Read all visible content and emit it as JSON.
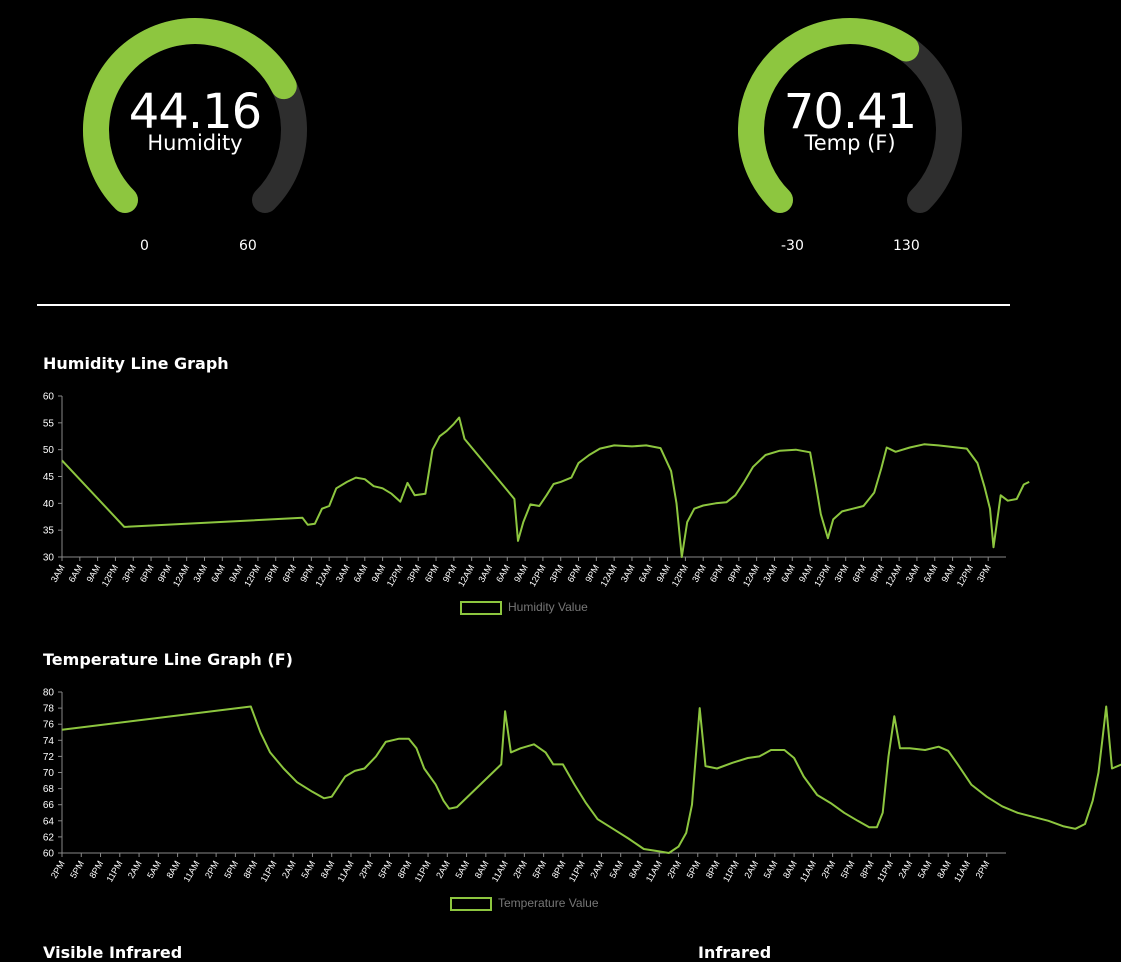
{
  "colors": {
    "accent": "#8dc63f",
    "track": "#2e2e2e",
    "background": "#000000",
    "axis": "#888888"
  },
  "gauges": [
    {
      "value": "44.16",
      "label": "Humidity",
      "min": "0",
      "max": "60",
      "fraction": 0.736
    },
    {
      "value": "70.41",
      "label": "Temp (F)",
      "min": "-30",
      "max": "130",
      "fraction": 0.628
    }
  ],
  "humidity_chart": {
    "title": "Humidity Line Graph",
    "legend": "Humidity Value"
  },
  "temperature_chart": {
    "title": "Temperature Line Graph (F)",
    "legend": "Temperature Value"
  },
  "bottom_sections": [
    "Visible Infrared",
    "Infrared"
  ],
  "chart_data": [
    {
      "type": "line",
      "title": "Humidity Line Graph",
      "ylim": [
        30,
        60
      ],
      "yticks": [
        30,
        35,
        40,
        45,
        50,
        55,
        60
      ],
      "categories": [
        "3AM",
        "6AM",
        "9AM",
        "12PM",
        "3PM",
        "6PM",
        "9PM",
        "12AM",
        "3AM",
        "6AM",
        "9AM",
        "12PM",
        "3PM",
        "6PM",
        "9PM",
        "12AM",
        "3AM",
        "6AM",
        "9AM",
        "12PM",
        "3PM",
        "6PM",
        "9PM",
        "12AM",
        "3AM",
        "6AM",
        "9AM",
        "12PM",
        "3PM",
        "6PM",
        "9PM",
        "12AM",
        "3AM",
        "6AM",
        "9AM",
        "12PM",
        "3PM",
        "6PM",
        "9PM",
        "12AM",
        "3AM",
        "6AM",
        "9AM",
        "12PM",
        "3PM",
        "6PM",
        "9PM",
        "12AM",
        "3AM",
        "6AM",
        "9AM",
        "12PM",
        "3PM"
      ],
      "series": [
        {
          "name": "Humidity Value",
          "points": [
            [
              0,
              48
            ],
            [
              3.5,
              35.6
            ],
            [
              13.5,
              37.3
            ],
            [
              13.8,
              36
            ],
            [
              14.2,
              36.2
            ],
            [
              14.6,
              39
            ],
            [
              15.0,
              39.5
            ],
            [
              15.4,
              42.8
            ],
            [
              16.0,
              44
            ],
            [
              16.5,
              44.8
            ],
            [
              17.0,
              44.5
            ],
            [
              17.5,
              43.2
            ],
            [
              18.0,
              42.8
            ],
            [
              18.5,
              41.8
            ],
            [
              19.0,
              40.3
            ],
            [
              19.4,
              43.8
            ],
            [
              19.8,
              41.5
            ],
            [
              20.4,
              41.8
            ],
            [
              20.8,
              50
            ],
            [
              21.2,
              52.5
            ],
            [
              21.6,
              53.5
            ],
            [
              22.0,
              54.8
            ],
            [
              22.3,
              56
            ],
            [
              22.6,
              52
            ],
            [
              25.4,
              40.8
            ],
            [
              25.6,
              33
            ],
            [
              25.9,
              36.5
            ],
            [
              26.3,
              39.8
            ],
            [
              26.8,
              39.5
            ],
            [
              27.2,
              41.5
            ],
            [
              27.6,
              43.6
            ],
            [
              28.0,
              44
            ],
            [
              28.6,
              44.8
            ],
            [
              29.0,
              47.5
            ],
            [
              29.6,
              49
            ],
            [
              30.2,
              50.2
            ],
            [
              31.0,
              50.8
            ],
            [
              32.0,
              50.6
            ],
            [
              32.8,
              50.8
            ],
            [
              33.6,
              50.3
            ],
            [
              34.2,
              46
            ],
            [
              34.5,
              40
            ],
            [
              34.8,
              30
            ],
            [
              35.1,
              36.5
            ],
            [
              35.5,
              39
            ],
            [
              36.0,
              39.6
            ],
            [
              36.7,
              40
            ],
            [
              37.3,
              40.2
            ],
            [
              37.8,
              41.5
            ],
            [
              38.3,
              44
            ],
            [
              38.8,
              46.8
            ],
            [
              39.5,
              49
            ],
            [
              40.3,
              49.8
            ],
            [
              41.2,
              50
            ],
            [
              42.0,
              49.5
            ],
            [
              42.3,
              44
            ],
            [
              42.6,
              38
            ],
            [
              43.0,
              33.5
            ],
            [
              43.3,
              37
            ],
            [
              43.8,
              38.5
            ],
            [
              44.4,
              39
            ],
            [
              45.0,
              39.5
            ],
            [
              45.6,
              42
            ],
            [
              46.0,
              46.5
            ],
            [
              46.3,
              50.4
            ],
            [
              46.8,
              49.6
            ],
            [
              47.6,
              50.4
            ],
            [
              48.4,
              51
            ],
            [
              49.2,
              50.8
            ],
            [
              50.0,
              50.5
            ],
            [
              50.8,
              50.2
            ],
            [
              51.4,
              47.5
            ],
            [
              51.8,
              43
            ],
            [
              52.1,
              39
            ],
            [
              52.3,
              31.8
            ],
            [
              52.7,
              41.5
            ],
            [
              53.1,
              40.5
            ],
            [
              53.6,
              40.8
            ],
            [
              54.0,
              43.5
            ],
            [
              54.3,
              44
            ]
          ]
        }
      ]
    },
    {
      "type": "line",
      "title": "Temperature Line Graph (F)",
      "ylim": [
        60,
        80
      ],
      "yticks": [
        60,
        62,
        64,
        66,
        68,
        70,
        72,
        74,
        76,
        78,
        80
      ],
      "categories": [
        "2PM",
        "5PM",
        "8PM",
        "11PM",
        "2AM",
        "5AM",
        "8AM",
        "11AM",
        "2PM",
        "5PM",
        "8PM",
        "11PM",
        "2AM",
        "5AM",
        "8AM",
        "11AM",
        "2PM",
        "5PM",
        "8PM",
        "11PM",
        "2AM",
        "5AM",
        "8AM",
        "11AM",
        "2PM",
        "5PM",
        "8PM",
        "11PM",
        "2AM",
        "5AM",
        "8AM",
        "11AM",
        "2PM",
        "5PM",
        "8PM",
        "11PM",
        "2AM",
        "5AM",
        "8AM",
        "11AM",
        "2PM",
        "5PM",
        "8PM",
        "11PM",
        "2AM",
        "5AM",
        "8AM",
        "11AM",
        "2PM"
      ],
      "series": [
        {
          "name": "Temperature Value",
          "points": [
            [
              0,
              75.3
            ],
            [
              9.8,
              78.2
            ],
            [
              10.3,
              75
            ],
            [
              10.8,
              72.5
            ],
            [
              11.5,
              70.5
            ],
            [
              12.2,
              68.8
            ],
            [
              13.0,
              67.6
            ],
            [
              13.6,
              66.8
            ],
            [
              14.0,
              67
            ],
            [
              14.7,
              69.5
            ],
            [
              15.2,
              70.2
            ],
            [
              15.7,
              70.5
            ],
            [
              16.3,
              72
            ],
            [
              16.8,
              73.8
            ],
            [
              17.5,
              74.2
            ],
            [
              18.0,
              74.2
            ],
            [
              18.4,
              73
            ],
            [
              18.8,
              70.5
            ],
            [
              19.4,
              68.5
            ],
            [
              19.8,
              66.5
            ],
            [
              20.1,
              65.5
            ],
            [
              20.5,
              65.7
            ],
            [
              22.8,
              71
            ],
            [
              23.0,
              77.6
            ],
            [
              23.3,
              72.5
            ],
            [
              23.8,
              73
            ],
            [
              24.5,
              73.5
            ],
            [
              25.1,
              72.5
            ],
            [
              25.5,
              71
            ],
            [
              26.0,
              71
            ],
            [
              26.6,
              68.5
            ],
            [
              27.2,
              66.2
            ],
            [
              27.8,
              64.2
            ],
            [
              28.6,
              63
            ],
            [
              29.4,
              61.8
            ],
            [
              30.2,
              60.5
            ],
            [
              31.0,
              60.2
            ],
            [
              31.5,
              60
            ],
            [
              32.0,
              60.8
            ],
            [
              32.4,
              62.5
            ],
            [
              32.7,
              66
            ],
            [
              32.9,
              72
            ],
            [
              33.1,
              78
            ],
            [
              33.4,
              70.8
            ],
            [
              34.0,
              70.5
            ],
            [
              34.8,
              71.2
            ],
            [
              35.6,
              71.8
            ],
            [
              36.2,
              72
            ],
            [
              36.8,
              72.8
            ],
            [
              37.5,
              72.8
            ],
            [
              38.0,
              71.8
            ],
            [
              38.5,
              69.5
            ],
            [
              39.2,
              67.2
            ],
            [
              39.9,
              66.2
            ],
            [
              40.6,
              65
            ],
            [
              41.3,
              64
            ],
            [
              41.9,
              63.2
            ],
            [
              42.3,
              63.2
            ],
            [
              42.6,
              65
            ],
            [
              42.9,
              72
            ],
            [
              43.2,
              77
            ],
            [
              43.5,
              73
            ],
            [
              44.0,
              73
            ],
            [
              44.8,
              72.8
            ],
            [
              45.5,
              73.2
            ],
            [
              46.0,
              72.7
            ],
            [
              46.5,
              71
            ],
            [
              47.2,
              68.5
            ],
            [
              48.0,
              67
            ],
            [
              48.8,
              65.8
            ],
            [
              49.6,
              65
            ],
            [
              50.4,
              64.5
            ],
            [
              51.2,
              64
            ],
            [
              52.0,
              63.3
            ],
            [
              52.6,
              63
            ],
            [
              53.1,
              63.6
            ],
            [
              53.5,
              66.5
            ],
            [
              53.8,
              70
            ],
            [
              54.0,
              74
            ],
            [
              54.2,
              78.2
            ],
            [
              54.5,
              70.5
            ],
            [
              55.0,
              71
            ],
            [
              55.6,
              71.2
            ],
            [
              56.2,
              71.5
            ],
            [
              56.8,
              71.2
            ],
            [
              57.2,
              70.4
            ]
          ]
        }
      ]
    }
  ]
}
